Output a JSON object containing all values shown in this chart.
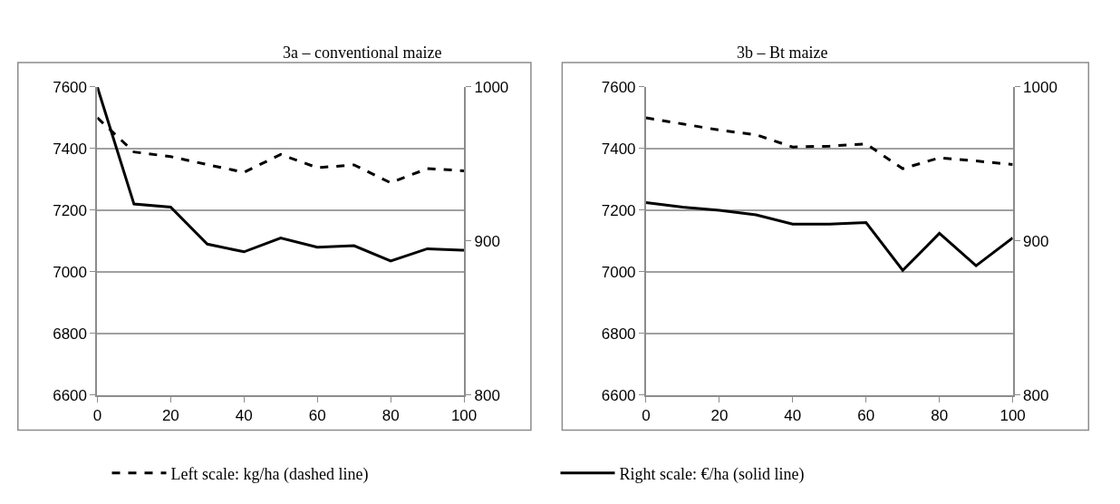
{
  "chart_data": [
    {
      "type": "line",
      "title": "3a – conventional maize",
      "x": [
        0,
        10,
        20,
        30,
        40,
        50,
        60,
        70,
        80,
        90,
        100
      ],
      "series": [
        {
          "name": "Left scale: kg/ha (dashed line)",
          "color": "#000000",
          "line_style": "dashed",
          "values": [
            7500,
            7389,
            7374,
            7348,
            7323,
            7381,
            7338,
            7347,
            7289,
            7335,
            7328
          ]
        },
        {
          "name": "Right scale: €/ha (solid line)",
          "color": "#000000",
          "line_style": "solid",
          "axis": "y2",
          "values": [
            1000,
            924,
            922,
            898,
            893,
            902,
            896,
            897,
            887,
            895,
            894
          ]
        }
      ],
      "xlim": [
        0,
        100
      ],
      "xticks": [
        0,
        20,
        40,
        60,
        80,
        100
      ],
      "ylim": [
        6600,
        7600
      ],
      "yticks": [
        6600,
        6800,
        7000,
        7200,
        7400,
        7600
      ],
      "y2lim": [
        800,
        1000
      ],
      "y2ticks": [
        800,
        900,
        1000
      ],
      "grid": "y",
      "legend": "bottom",
      "marker": "none"
    },
    {
      "type": "line",
      "title": "3b – Bt maize",
      "x": [
        0,
        10,
        20,
        30,
        40,
        50,
        60,
        70,
        80,
        90,
        100
      ],
      "series": [
        {
          "color": "#000000",
          "line_style": "dashed",
          "values": [
            7500,
            7480,
            7460,
            7445,
            7405,
            7408,
            7415,
            7335,
            7370,
            7360,
            7348
          ]
        },
        {
          "color": "#000000",
          "line_style": "solid",
          "axis": "y2",
          "values": [
            925,
            922,
            920,
            917,
            911,
            911,
            912,
            881,
            905,
            884,
            902
          ]
        }
      ],
      "xlim": [
        0,
        100
      ],
      "xticks": [
        0,
        20,
        40,
        60,
        80,
        100
      ],
      "ylim": [
        6600,
        7600
      ],
      "yticks": [
        6600,
        6800,
        7000,
        7200,
        7400,
        7600
      ],
      "y2lim": [
        800,
        1000
      ],
      "y2ticks": [
        800,
        900,
        1000
      ],
      "grid": "y",
      "marker": "none"
    }
  ]
}
